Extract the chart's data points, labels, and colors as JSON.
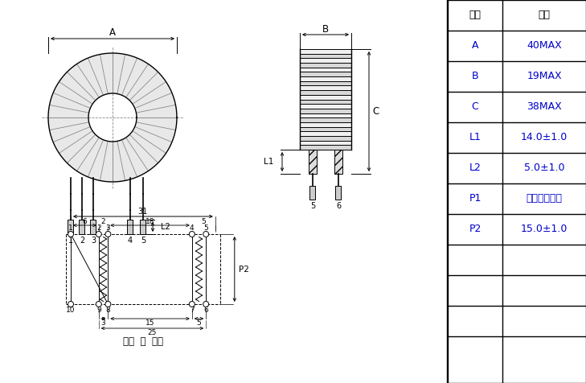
{
  "table_headers": [
    "项目",
    "范围"
  ],
  "table_rows": [
    [
      "A",
      "40MAX"
    ],
    [
      "B",
      "19MAX"
    ],
    [
      "C",
      "38MAX"
    ],
    [
      "L1",
      "14.0±1.0"
    ],
    [
      "L2",
      "5.0±1.0"
    ],
    [
      "P1",
      "参照左图脚距"
    ],
    [
      "P2",
      "15.0±1.0"
    ],
    [
      "",
      ""
    ],
    [
      "",
      ""
    ],
    [
      "",
      ""
    ]
  ],
  "line_color": "#000000",
  "blue": "#0000CC",
  "black": "#000000",
  "bg_color": "#FFFFFF"
}
